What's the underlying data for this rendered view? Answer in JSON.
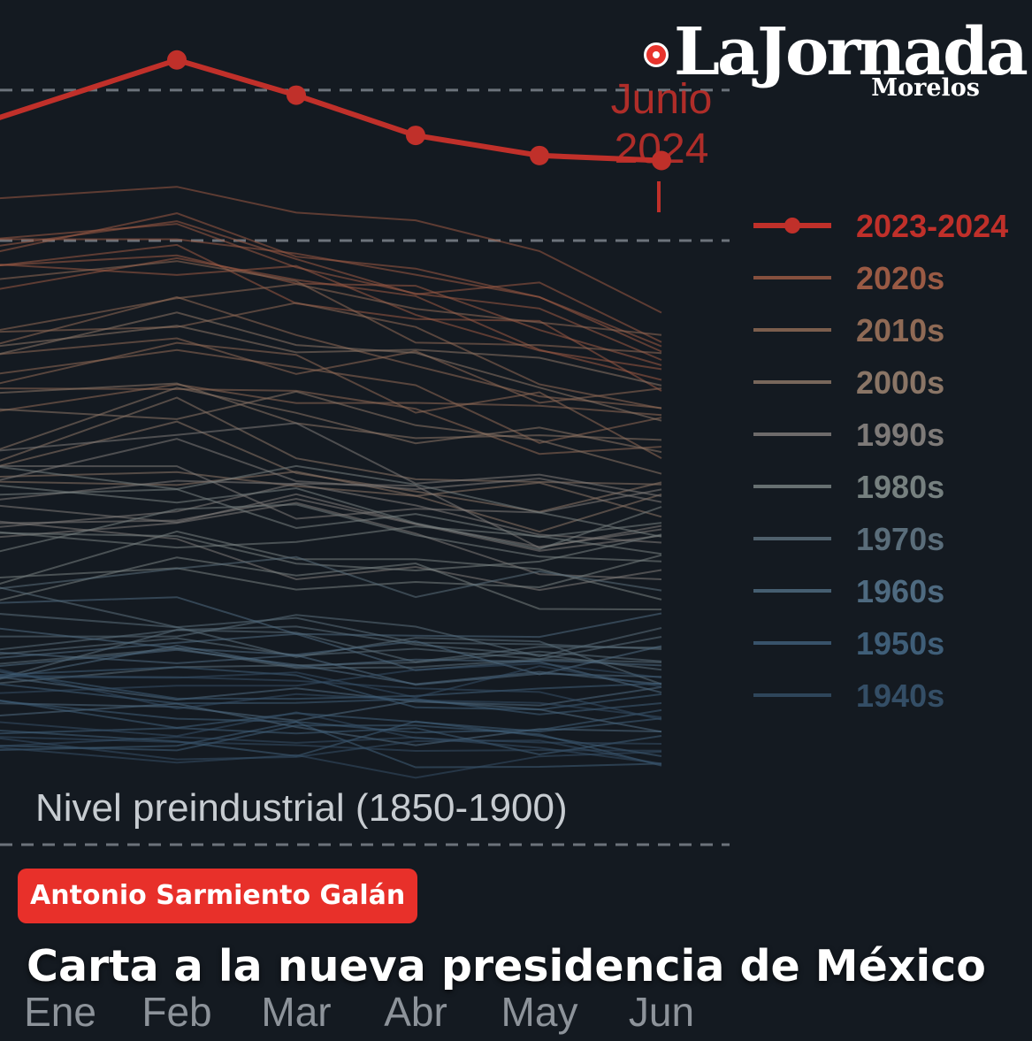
{
  "brand": {
    "name": "LaJornada",
    "sub": "Morelos"
  },
  "author": "Antonio Sarmiento Galán",
  "headline": "Carta a la nueva presidencia de México",
  "chart_data": {
    "type": "line",
    "categories": [
      "Ene",
      "Feb",
      "Mar",
      "Abr",
      "May",
      "Jun"
    ],
    "ylim": [
      0,
      1.6
    ],
    "annotation": "Junio\n2024",
    "baseline_label": "Nivel preindustrial (1850-1900)",
    "reference_lines": [
      0,
      1.5
    ],
    "series": [
      {
        "name": "2023-2024",
        "color": "#c0302a",
        "highlight": true,
        "values": [
          1.44,
          1.56,
          1.49,
          1.41,
          1.37,
          1.36
        ]
      },
      {
        "name": "2020s",
        "color": "#9a5a44",
        "values": [
          1.2,
          1.24,
          1.2,
          1.14,
          1.09,
          1.02
        ],
        "spread": 0.1
      },
      {
        "name": "2010s",
        "color": "#8f6a55",
        "values": [
          1.0,
          1.05,
          1.02,
          0.96,
          0.92,
          0.9
        ],
        "spread": 0.13
      },
      {
        "name": "2000s",
        "color": "#8a7566",
        "values": [
          0.85,
          0.88,
          0.86,
          0.82,
          0.8,
          0.78
        ],
        "spread": 0.14
      },
      {
        "name": "1990s",
        "color": "#7e7a78",
        "values": [
          0.72,
          0.74,
          0.72,
          0.7,
          0.68,
          0.66
        ],
        "spread": 0.14
      },
      {
        "name": "1980s",
        "color": "#76807f",
        "values": [
          0.6,
          0.62,
          0.6,
          0.58,
          0.57,
          0.56
        ],
        "spread": 0.13
      },
      {
        "name": "1970s",
        "color": "#5a6d7a",
        "values": [
          0.46,
          0.47,
          0.46,
          0.44,
          0.43,
          0.42
        ],
        "spread": 0.12
      },
      {
        "name": "1960s",
        "color": "#4e6a80",
        "values": [
          0.36,
          0.36,
          0.35,
          0.34,
          0.33,
          0.33
        ],
        "spread": 0.1
      },
      {
        "name": "1950s",
        "color": "#3f5e78",
        "values": [
          0.3,
          0.3,
          0.29,
          0.28,
          0.28,
          0.27
        ],
        "spread": 0.09
      },
      {
        "name": "1940s",
        "color": "#344e66",
        "values": [
          0.26,
          0.25,
          0.25,
          0.24,
          0.24,
          0.23
        ],
        "spread": 0.09
      }
    ]
  }
}
